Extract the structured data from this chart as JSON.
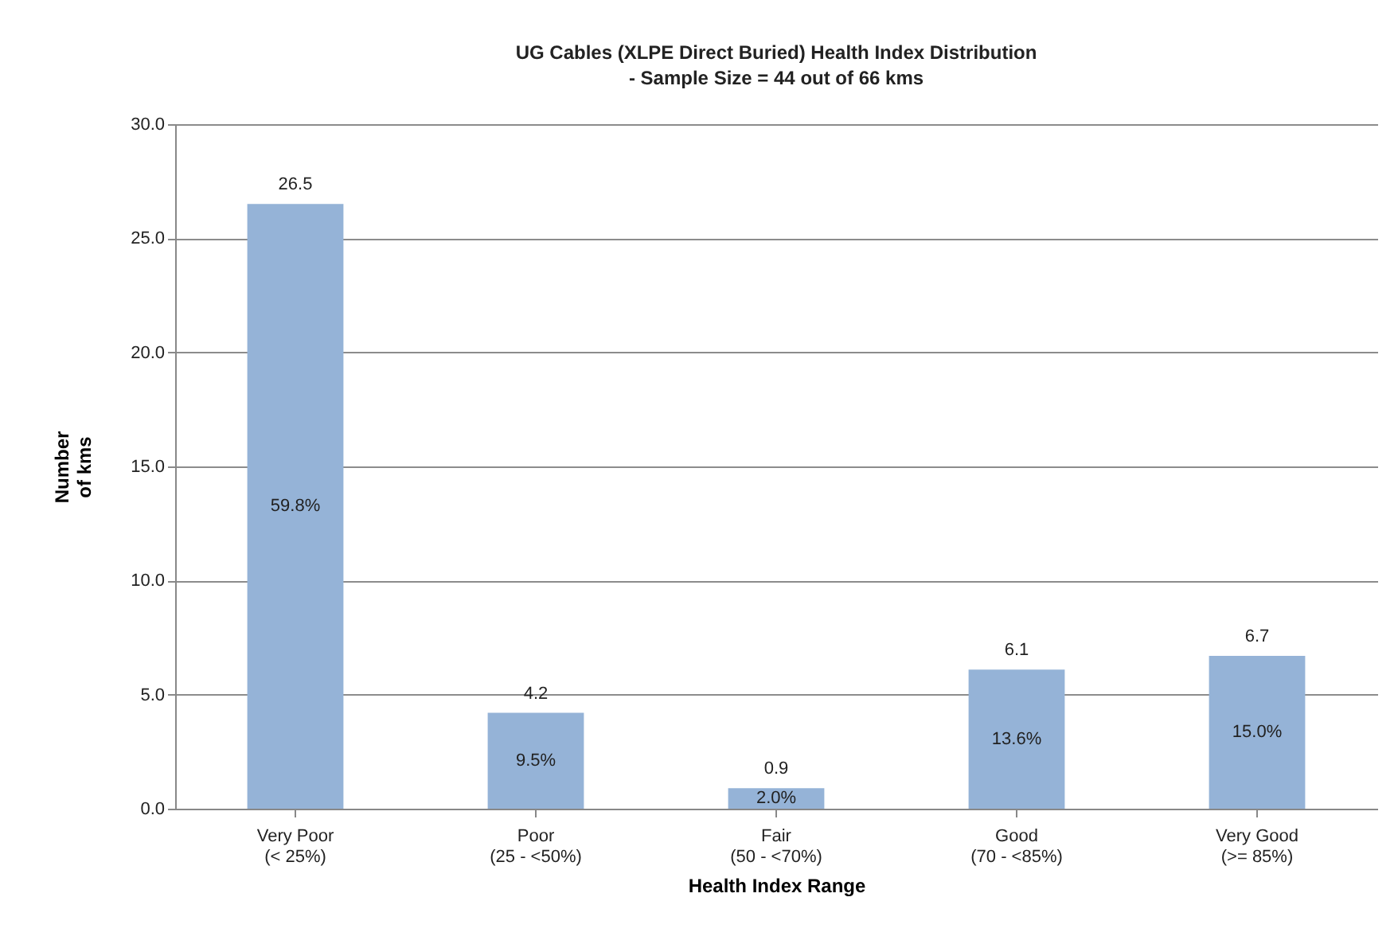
{
  "chart_data": {
    "type": "bar",
    "title": "UG Cables (XLPE Direct Buried) Health Index Distribution",
    "subtitle": "- Sample Size = 44 out of 66 kms",
    "xlabel": "Health Index Range",
    "ylabel": "Number\nof kms",
    "categories": [
      "Very Poor\n(< 25%)",
      "Poor\n(25 - <50%)",
      "Fair\n(50 - <70%)",
      "Good\n(70 - <85%)",
      "Very Good\n(>= 85%)"
    ],
    "values": [
      26.5,
      4.2,
      0.9,
      6.1,
      6.7
    ],
    "color": "#95b3d7",
    "data_labels": true,
    "ylim": [
      0,
      30
    ],
    "yticks": [
      {
        "value": 0,
        "label": "0.0"
      },
      {
        "value": 5,
        "label": "5.0"
      },
      {
        "value": 10,
        "label": "10.0"
      },
      {
        "value": 15,
        "label": "15.0"
      },
      {
        "value": 20,
        "label": "20.0"
      },
      {
        "value": 25,
        "label": "25.0"
      },
      {
        "value": 30,
        "label": "30.0"
      }
    ],
    "grid": "y",
    "annotations": [
      "59.8%",
      "9.5%",
      "2.0%",
      "13.6%",
      "15.0%"
    ]
  }
}
